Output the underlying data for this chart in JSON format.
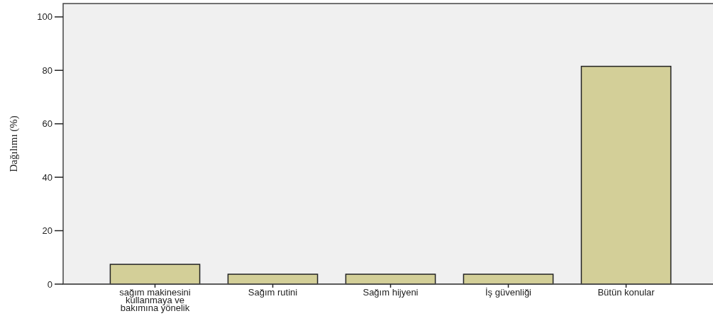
{
  "chart_data": {
    "type": "bar",
    "ylabel": "Dağılımı (%)",
    "categories": [
      "sağım makinesini kullanmaya ve bakımına yönelik",
      "Sağım rutini",
      "Sağım hijyeni",
      "İş güvenliği",
      "Bütün konular"
    ],
    "values": [
      7.4,
      3.7,
      3.7,
      3.7,
      81.5
    ],
    "color": "#d3cf98",
    "ylim": [
      0,
      105
    ],
    "yticks": [
      0,
      20,
      40,
      60,
      80,
      100
    ],
    "grid": false
  }
}
